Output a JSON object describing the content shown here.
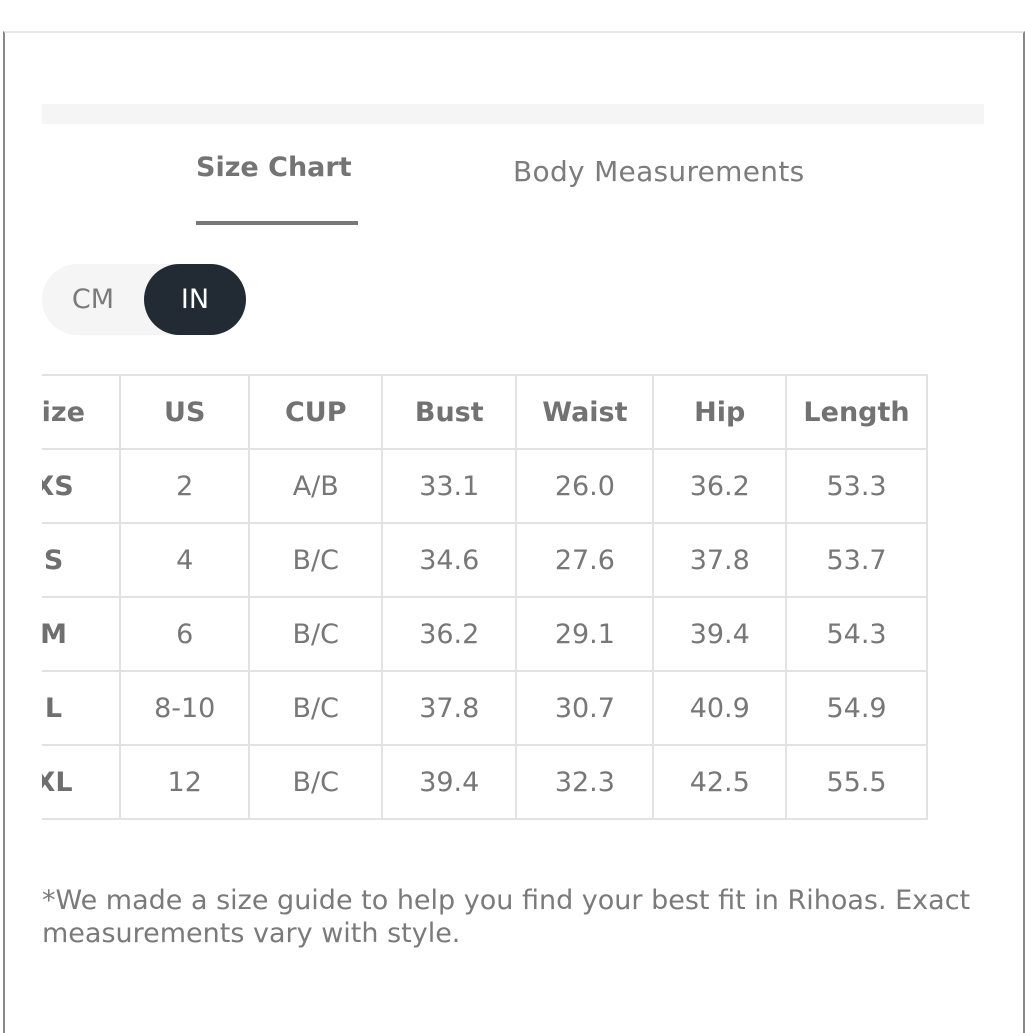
{
  "tabs": [
    {
      "label": "Size Chart",
      "active": true
    },
    {
      "label": "Body Measurements",
      "active": false
    }
  ],
  "unit_toggle": {
    "options": [
      "CM",
      "IN"
    ],
    "selected": "IN"
  },
  "table": {
    "headers": [
      "Size",
      "US",
      "CUP",
      "Bust",
      "Waist",
      "Hip",
      "Length"
    ],
    "rows": [
      [
        "XS",
        "2",
        "A/B",
        "33.1",
        "26.0",
        "36.2",
        "53.3"
      ],
      [
        "S",
        "4",
        "B/C",
        "34.6",
        "27.6",
        "37.8",
        "53.7"
      ],
      [
        "M",
        "6",
        "B/C",
        "36.2",
        "29.1",
        "39.4",
        "54.3"
      ],
      [
        "L",
        "8-10",
        "B/C",
        "37.8",
        "30.7",
        "40.9",
        "54.9"
      ],
      [
        "XL",
        "12",
        "B/C",
        "39.4",
        "32.3",
        "42.5",
        "55.5"
      ]
    ]
  },
  "note": "*We made a size guide to help you find your best fit in Rihoas. Exact measurements vary with style.",
  "colors": {
    "toggle_active_bg": "#222b33",
    "text": "#777777",
    "border": "#e2e2e2"
  }
}
